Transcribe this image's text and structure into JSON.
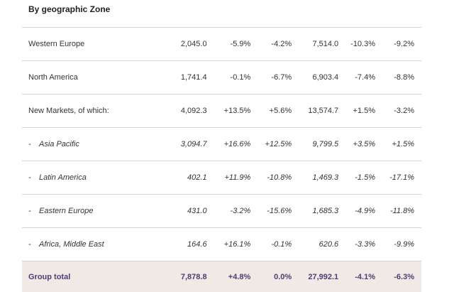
{
  "title": "By geographic Zone",
  "rows": [
    {
      "label": "Western Europe",
      "sub": false,
      "values": [
        "2,045.0",
        "-5.9%",
        "-4.2%",
        "7,514.0",
        "-10.3%",
        "-9.2%"
      ]
    },
    {
      "label": "North America",
      "sub": false,
      "values": [
        "1,741.4",
        "-0.1%",
        "-6.7%",
        "6,903.4",
        "-7.4%",
        "-8.8%"
      ]
    },
    {
      "label": "New Markets, of which:",
      "sub": false,
      "values": [
        "4,092.3",
        "+13.5%",
        "+5.6%",
        "13,574.7",
        "+1.5%",
        "-3.2%"
      ]
    },
    {
      "label": "Asia Pacific",
      "sub": true,
      "values": [
        "3,094.7",
        "+16.6%",
        "+12.5%",
        "9,799.5",
        "+3.5%",
        "+1.5%"
      ]
    },
    {
      "label": "Latin America",
      "sub": true,
      "values": [
        "402.1",
        "+11.9%",
        "-10.8%",
        "1,469.3",
        "-1.5%",
        "-17.1%"
      ]
    },
    {
      "label": "Eastern Europe",
      "sub": true,
      "values": [
        "431.0",
        "-3.2%",
        "-15.6%",
        "1,685.3",
        "-4.9%",
        "-11.8%"
      ]
    },
    {
      "label": "Africa, Middle East",
      "sub": true,
      "values": [
        "164.6",
        "+16.1%",
        "-0.1%",
        "620.6",
        "-3.3%",
        "-9.9%"
      ]
    }
  ],
  "total": {
    "label": "Group total",
    "values": [
      "7,878.8",
      "+4.8%",
      "0.0%",
      "27,992.1",
      "-4.1%",
      "-6.3%"
    ]
  },
  "dash_glyph": "-"
}
